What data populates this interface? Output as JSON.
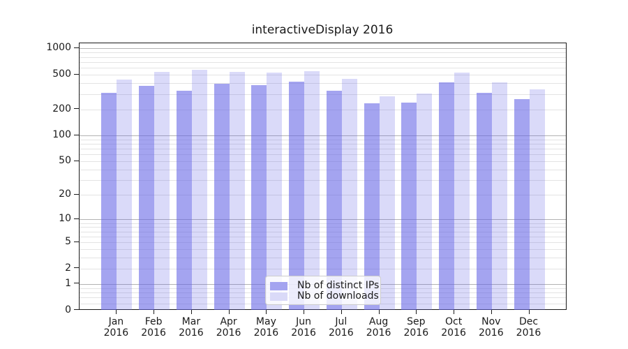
{
  "chart_data": {
    "type": "bar",
    "title": "interactiveDisplay 2016",
    "categories": [
      "Jan",
      "Feb",
      "Mar",
      "Apr",
      "May",
      "Jun",
      "Jul",
      "Aug",
      "Sep",
      "Oct",
      "Nov",
      "Dec"
    ],
    "x_sub_label": "2016",
    "series": [
      {
        "name": "Nb of distinct IPs",
        "color": "#a4a4f0",
        "values": [
          310,
          373,
          330,
          395,
          380,
          415,
          330,
          235,
          240,
          410,
          310,
          263
        ]
      },
      {
        "name": "Nb of downloads",
        "color": "#dadaf8",
        "values": [
          440,
          540,
          570,
          540,
          530,
          550,
          445,
          283,
          305,
          530,
          410,
          340
        ]
      }
    ],
    "yscale": "log1p",
    "ylim": [
      0,
      1000
    ],
    "yticks": [
      0,
      1,
      2,
      5,
      10,
      20,
      50,
      100,
      200,
      500,
      1000
    ],
    "grid": true,
    "legend_position": "lower center",
    "colors": {
      "bar_base": "#6464e6",
      "major_grid": "#b2b2b2",
      "minor_grid": "#e3e3e3",
      "axis": "#1a1a1a"
    }
  }
}
